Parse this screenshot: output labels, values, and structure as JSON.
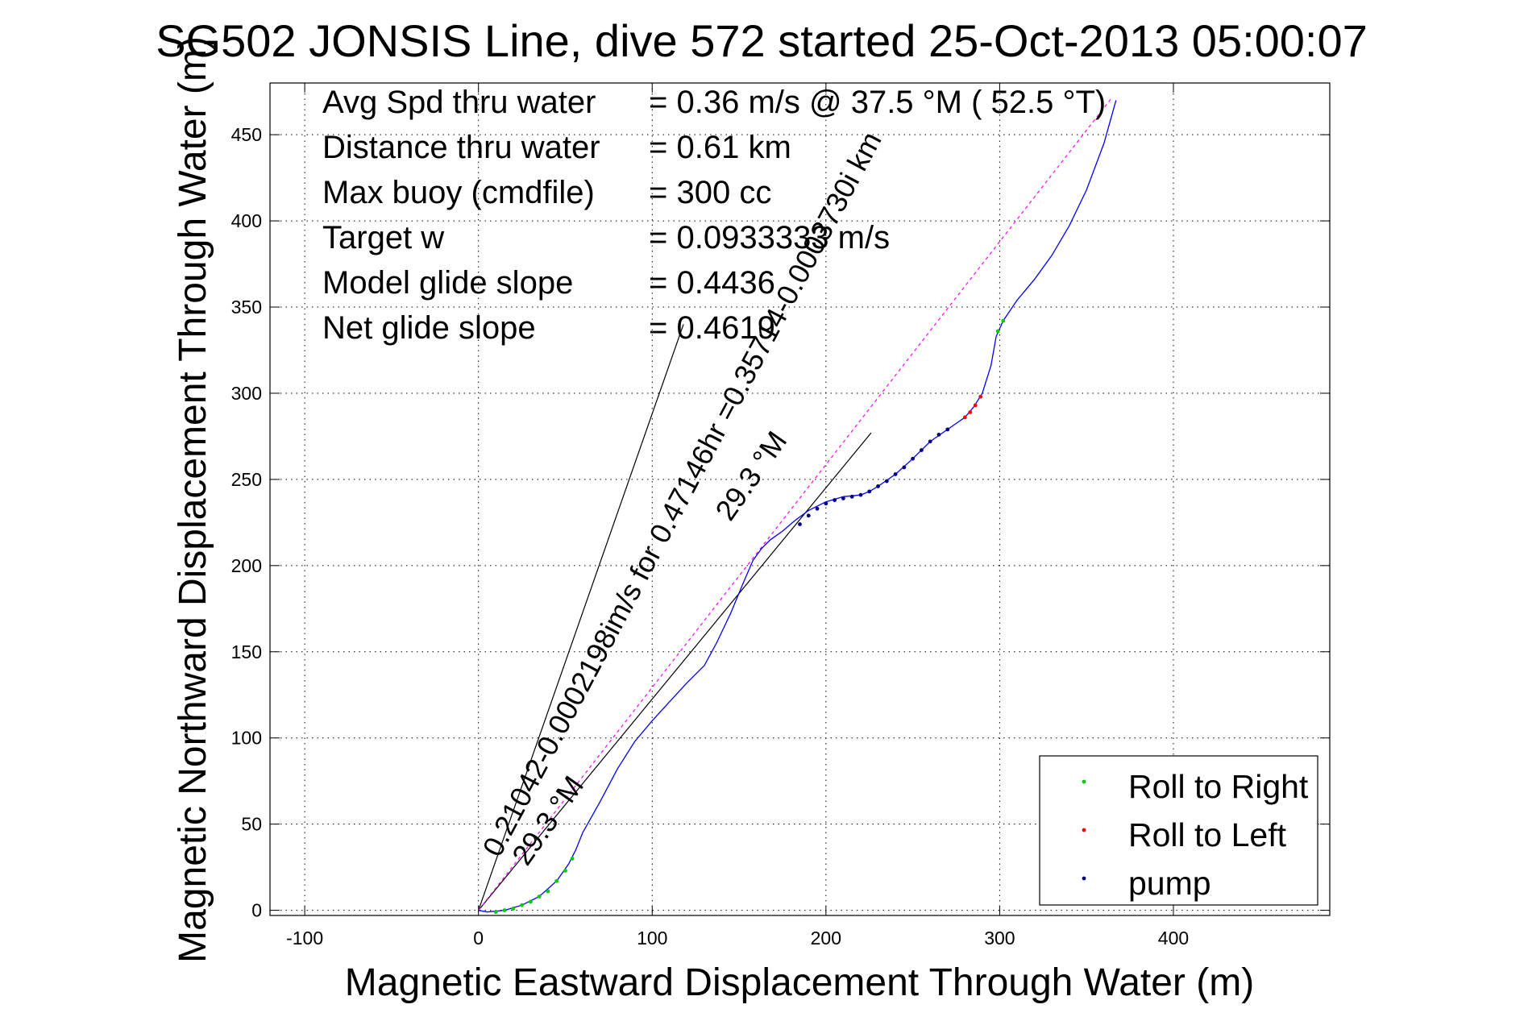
{
  "chart_data": {
    "type": "line",
    "title": "SG502 JONSIS Line, dive 572 started 25-Oct-2013 05:00:07",
    "xlabel": "Magnetic Eastward Displacement Through Water (m)",
    "ylabel": "Magnetic Northward Displacement Through Water (m)",
    "xlim": [
      -120,
      490
    ],
    "ylim": [
      -3,
      480
    ],
    "xticks": [
      -100,
      0,
      100,
      200,
      300,
      400
    ],
    "yticks": [
      0,
      50,
      100,
      150,
      200,
      250,
      300,
      350,
      400,
      450
    ],
    "grid": true,
    "stats": [
      {
        "label": "Avg Spd thru water",
        "value": "=  0.36 m/s @  37.5 °M ( 52.5 °T)"
      },
      {
        "label": "Distance thru water",
        "value": "=  0.61 km"
      },
      {
        "label": "Max buoy (cmdfile)",
        "value": "= 300 cc"
      },
      {
        "label": "Target w",
        "value": "= 0.0933333 m/s"
      },
      {
        "label": "Model glide slope",
        "value": "= 0.4436"
      },
      {
        "label": "Net glide slope",
        "value": "= 0.4619"
      }
    ],
    "legend": {
      "position": "bottom-right",
      "entries": [
        {
          "label": "Roll to Right",
          "color": "#00cc00"
        },
        {
          "label": "Roll to Left",
          "color": "#ff0000"
        },
        {
          "label": "pump",
          "color": "#000080"
        }
      ]
    },
    "track": {
      "name": "displacement",
      "color": "#0000ff",
      "x": [
        0,
        5,
        15,
        25,
        35,
        45,
        52,
        56,
        60,
        70,
        80,
        90,
        100,
        110,
        120,
        130,
        137,
        145,
        152,
        158,
        163,
        168,
        175,
        182,
        190,
        200,
        210,
        220,
        225,
        230,
        240,
        250,
        260,
        270,
        280,
        285,
        290,
        295,
        298,
        302,
        310,
        320,
        330,
        340,
        350,
        360,
        367
      ],
      "y": [
        0,
        -1,
        0,
        3,
        8,
        17,
        27,
        35,
        45,
        63,
        82,
        98,
        110,
        121,
        132,
        142,
        155,
        172,
        189,
        203,
        210,
        215,
        220,
        226,
        232,
        237,
        240,
        241,
        243,
        246,
        253,
        262,
        272,
        279,
        286,
        292,
        300,
        316,
        333,
        342,
        354,
        366,
        380,
        397,
        418,
        445,
        470
      ]
    },
    "markers": [
      {
        "type": "roll-right",
        "color": "#00cc00",
        "x": [
          10,
          15,
          20,
          25,
          30,
          35,
          40,
          45,
          50,
          54,
          299,
          302
        ],
        "y": [
          -1,
          0,
          1,
          3,
          5,
          8,
          11,
          17,
          23,
          30,
          336,
          342
        ]
      },
      {
        "type": "roll-left",
        "color": "#ff0000",
        "x": [
          280,
          283,
          286,
          289
        ],
        "y": [
          286,
          289,
          293,
          298
        ]
      },
      {
        "type": "pump",
        "color": "#000080",
        "x": [
          185,
          190,
          195,
          200,
          205,
          210,
          215,
          220,
          225,
          230,
          235,
          240,
          245,
          250,
          255,
          260,
          265,
          270
        ],
        "y": [
          224,
          229,
          233,
          236,
          238,
          239,
          240,
          241,
          243,
          246,
          249,
          253,
          257,
          262,
          267,
          272,
          276,
          279
        ]
      }
    ],
    "reference_lines": [
      {
        "name": "heading-line",
        "x": [
          0,
          118
        ],
        "y": [
          0,
          340
        ],
        "color": "#000000"
      },
      {
        "name": "current-line",
        "x": [
          0,
          226
        ],
        "y": [
          0,
          277
        ],
        "color": "#000000"
      },
      {
        "name": "net-line",
        "x": [
          0,
          365
        ],
        "y": [
          0,
          472
        ],
        "color": "#ff00ff",
        "dashed": true
      }
    ],
    "annotations": [
      {
        "text": "0.21042-0.0002198im/s for 0.47146hr =0.35714-0.0003730i km",
        "x": 12,
        "y": 30,
        "angle_deg": -62
      },
      {
        "text": "29.3 °M",
        "x": 28,
        "y": 25,
        "angle_deg": -55
      },
      {
        "text": "29.3 °M",
        "x": 145,
        "y": 225,
        "angle_deg": -55
      }
    ]
  }
}
